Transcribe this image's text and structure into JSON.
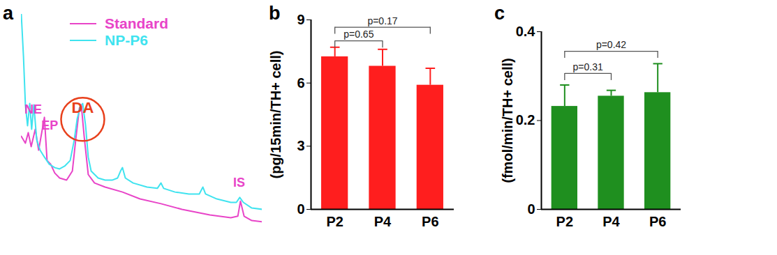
{
  "chart_data": [
    {
      "type": "line",
      "title": "a",
      "xlim": [
        0,
        100
      ],
      "ylim": [
        0,
        100
      ],
      "tick_labels": false,
      "legend": "top",
      "series": [
        {
          "name": "Standard",
          "color": "#e844c8",
          "x": [
            0,
            1.7,
            2.9,
            4.1,
            5.8,
            7.2,
            9.6,
            10.7,
            12.2,
            13.9,
            15.9,
            18.8,
            21.2,
            22.6,
            24.1,
            24.9,
            26.1,
            27.8,
            30.4,
            34.8,
            42.0,
            49.3,
            58.0,
            66.7,
            78.3,
            87.0,
            89.9,
            91.0,
            92.5,
            95.7,
            100
          ],
          "values": [
            43.5,
            40.3,
            45.2,
            38.7,
            46.8,
            37.1,
            52.3,
            32.3,
            30.6,
            26.5,
            24.2,
            23.2,
            27.4,
            41.9,
            56.5,
            58.1,
            43.5,
            25.8,
            21.9,
            20.0,
            17.7,
            14.5,
            12.3,
            9.7,
            7.1,
            5.8,
            6.5,
            13.5,
            6.5,
            4.5,
            3.9
          ]
        },
        {
          "name": "NP-P6",
          "color": "#3fe3ef",
          "x": [
            0,
            0.9,
            1.7,
            2.6,
            3.5,
            4.3,
            5.2,
            6.4,
            7.8,
            9.6,
            11.6,
            13.9,
            15.9,
            18.0,
            20.3,
            22.0,
            23.2,
            24.6,
            25.5,
            26.7,
            27.8,
            29.0,
            31.9,
            34.8,
            37.7,
            40.0,
            41.2,
            42.0,
            43.2,
            46.4,
            52.2,
            56.5,
            58.0,
            59.1,
            63.8,
            69.6,
            73.9,
            75.4,
            76.5,
            81.2,
            87.0,
            89.3,
            90.7,
            92.2,
            95.7,
            100
          ],
          "values": [
            100,
            80.6,
            58.1,
            48.4,
            58.7,
            46.8,
            58.1,
            41.9,
            37.1,
            33.9,
            30.6,
            29.0,
            28.4,
            29.7,
            32.3,
            41.9,
            51.6,
            57.4,
            58.7,
            48.4,
            33.9,
            27.4,
            24.2,
            23.2,
            23.2,
            24.2,
            27.4,
            29.0,
            24.2,
            21.9,
            20.0,
            19.4,
            21.9,
            19.4,
            17.7,
            16.8,
            16.8,
            20.0,
            16.8,
            14.5,
            12.9,
            12.9,
            15.2,
            12.9,
            10.3,
            9.7
          ]
        }
      ],
      "annotations": [
        {
          "text": "NE",
          "x": 4.9,
          "y": 56,
          "color": "#e844c8"
        },
        {
          "text": "EP",
          "x": 11.8,
          "y": 48.5,
          "color": "#e844c8"
        },
        {
          "text": "DA",
          "x": 25.5,
          "y": 56.5,
          "color": "#e8401c",
          "marker": "circle"
        },
        {
          "text": "IS",
          "x": 90.4,
          "y": 22,
          "color": "#e844c8"
        }
      ]
    },
    {
      "type": "bar",
      "title": "b",
      "ylabel": "(pg/15min/TH+ cell)",
      "categories": [
        "P2",
        "P4",
        "P6"
      ],
      "values": [
        7.25,
        6.8,
        5.9
      ],
      "errors": [
        0.45,
        0.8,
        0.8
      ],
      "color": "#ff1e1e",
      "ylim": [
        0,
        9
      ],
      "yticks": [
        0,
        3,
        6,
        9
      ],
      "annotations": [
        {
          "text": "p=0.65",
          "from": "P2",
          "to": "P4",
          "y": 8.0
        },
        {
          "text": "p=0.17",
          "from": "P2",
          "to": "P6",
          "y": 8.65
        }
      ]
    },
    {
      "type": "bar",
      "title": "c",
      "ylabel": "(fmol/min/TH+ cell)",
      "categories": [
        "P2",
        "P4",
        "P6"
      ],
      "values": [
        0.232,
        0.255,
        0.263
      ],
      "errors": [
        0.048,
        0.013,
        0.065
      ],
      "color": "#1f8f1f",
      "ylim": [
        0,
        0.4
      ],
      "yticks": [
        0,
        0.2,
        0.4
      ],
      "annotations": [
        {
          "text": "p=0.31",
          "from": "P2",
          "to": "P4",
          "y": 0.306
        },
        {
          "text": "p=0.42",
          "from": "P2",
          "to": "P6",
          "y": 0.356
        }
      ]
    }
  ]
}
